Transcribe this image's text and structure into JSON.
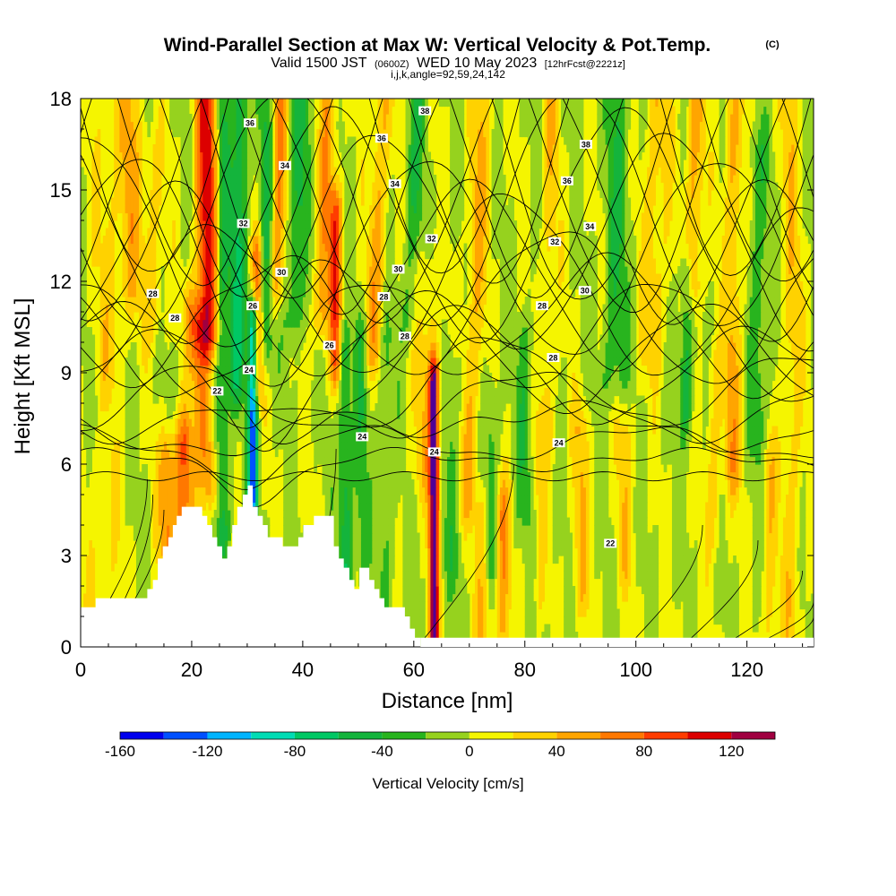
{
  "chart_data": {
    "type": "contour",
    "title": "Wind-Parallel Section at Max W: Vertical Velocity & Pot.Temp.",
    "title_mark": "(C)",
    "subtitle": {
      "valid": "Valid 1500 JST",
      "utc": "(0600Z)",
      "date": "WED 10 May 2023",
      "forecast": "[12hrFcst@2221z]"
    },
    "subtitle2": "i,j,k,angle=92,59,24,142",
    "xlabel": "Distance [nm]",
    "ylabel": "Height [Kft MSL]",
    "xlim": [
      0,
      132
    ],
    "ylim": [
      0,
      18
    ],
    "x_ticks": [
      0,
      20,
      40,
      60,
      80,
      100,
      120
    ],
    "y_ticks": [
      0,
      3,
      6,
      9,
      12,
      15,
      18
    ],
    "colorbar": {
      "label": "Vertical Velocity [cm/s]",
      "boundaries": [
        -160,
        -140,
        -120,
        -100,
        -80,
        -60,
        -40,
        -20,
        0,
        20,
        40,
        60,
        80,
        100,
        120,
        140
      ],
      "colors": [
        "#0000ee",
        "#0050ff",
        "#00b4ff",
        "#00dcb4",
        "#00c864",
        "#14b43c",
        "#28b41e",
        "#96d21e",
        "#f5f500",
        "#ffd200",
        "#ffa500",
        "#ff7800",
        "#ff3c00",
        "#dc0000",
        "#a00040",
        "#500096"
      ],
      "tick_labels": [
        -160,
        -120,
        -80,
        -40,
        0,
        40,
        80,
        120
      ]
    },
    "theta_contour_labels": [
      {
        "text": "36",
        "x": 30.5,
        "y": 17.2
      },
      {
        "text": "34",
        "x": 36.8,
        "y": 15.8
      },
      {
        "text": "32",
        "x": 29.3,
        "y": 13.9
      },
      {
        "text": "30",
        "x": 36.2,
        "y": 12.3
      },
      {
        "text": "28",
        "x": 13.0,
        "y": 11.6
      },
      {
        "text": "28",
        "x": 17.0,
        "y": 10.8
      },
      {
        "text": "26",
        "x": 31.0,
        "y": 11.2
      },
      {
        "text": "24",
        "x": 30.3,
        "y": 9.1
      },
      {
        "text": "22",
        "x": 24.6,
        "y": 8.4
      },
      {
        "text": "38",
        "x": 62.0,
        "y": 17.6
      },
      {
        "text": "36",
        "x": 54.2,
        "y": 16.7
      },
      {
        "text": "34",
        "x": 56.6,
        "y": 15.2
      },
      {
        "text": "32",
        "x": 63.2,
        "y": 13.4
      },
      {
        "text": "30",
        "x": 57.2,
        "y": 12.4
      },
      {
        "text": "28",
        "x": 54.6,
        "y": 11.5
      },
      {
        "text": "28",
        "x": 58.4,
        "y": 10.2
      },
      {
        "text": "26",
        "x": 44.8,
        "y": 9.9
      },
      {
        "text": "24",
        "x": 50.7,
        "y": 6.9
      },
      {
        "text": "24",
        "x": 63.7,
        "y": 6.4
      },
      {
        "text": "38",
        "x": 91.0,
        "y": 16.5
      },
      {
        "text": "36",
        "x": 87.6,
        "y": 15.3
      },
      {
        "text": "34",
        "x": 91.7,
        "y": 13.8
      },
      {
        "text": "32",
        "x": 85.4,
        "y": 13.3
      },
      {
        "text": "30",
        "x": 90.8,
        "y": 11.7
      },
      {
        "text": "28",
        "x": 83.1,
        "y": 11.2
      },
      {
        "text": "28",
        "x": 85.1,
        "y": 9.5
      },
      {
        "text": "24",
        "x": 86.1,
        "y": 6.7
      },
      {
        "text": "22",
        "x": 95.4,
        "y": 3.4
      }
    ],
    "grid": false
  }
}
